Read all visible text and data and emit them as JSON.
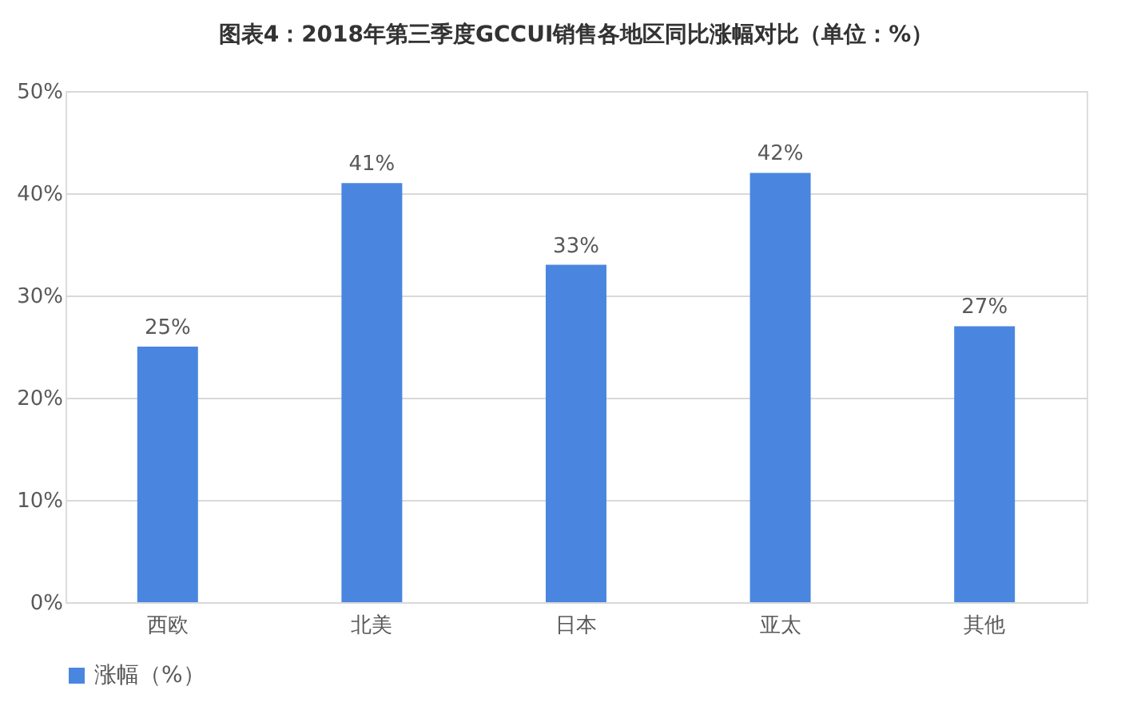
{
  "chart_data": {
    "type": "bar",
    "title": "图表4：2018年第三季度GCCUI销售各地区同比涨幅对比（单位：%）",
    "categories": [
      "西欧",
      "北美",
      "日本",
      "亚太",
      "其他"
    ],
    "series": [
      {
        "name": "涨幅（%）",
        "color": "#4a86e0",
        "values": [
          25,
          41,
          33,
          42,
          27
        ],
        "value_labels": [
          "25%",
          "41%",
          "33%",
          "42%",
          "27%"
        ]
      }
    ],
    "ylim": [
      0,
      50
    ],
    "yticks": [
      {
        "value": 0,
        "label": "0%"
      },
      {
        "value": 10,
        "label": "10%"
      },
      {
        "value": 20,
        "label": "20%"
      },
      {
        "value": 30,
        "label": "30%"
      },
      {
        "value": 40,
        "label": "40%"
      },
      {
        "value": 50,
        "label": "50%"
      }
    ],
    "grid": "y",
    "legend": "bottom"
  }
}
